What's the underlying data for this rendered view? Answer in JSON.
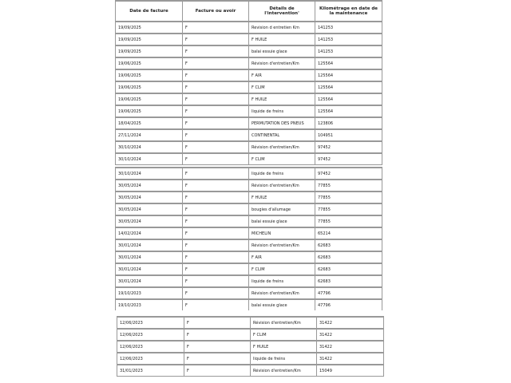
{
  "header": [
    "Date de facture",
    "Facture ou avoir",
    "Détails de l'intervention'",
    "Kilométrage en date de la maintenance"
  ],
  "segments": [
    [
      [
        "19/09/2025",
        "F",
        "Revision d entretien Km",
        "141253"
      ],
      [
        "19/09/2025",
        "F",
        "F HUILE",
        "141253"
      ],
      [
        "19/09/2025",
        "F",
        "balai essuie glace",
        "141253"
      ],
      [
        "19/06/2025",
        "F",
        "Révision d'entretien/Km",
        "125564"
      ],
      [
        "19/06/2025",
        "F",
        "F AIR",
        "125564"
      ],
      [
        "19/06/2025",
        "F",
        "F CLIM",
        "125564"
      ],
      [
        "19/06/2025",
        "F",
        "F HUILE",
        "125564"
      ],
      [
        "19/06/2025",
        "F",
        "liquide de freins",
        "125564"
      ],
      [
        "18/04/2025",
        "F",
        "PERMUTATION DES PNEUS",
        "123806"
      ],
      [
        "27/11/2024",
        "F",
        "CONTINENTAL",
        "104951"
      ],
      [
        "30/10/2024",
        "F",
        "Révision d'entretien/Km",
        "97452"
      ],
      [
        "30/10/2024",
        "F",
        "F CLIM",
        "97452"
      ]
    ],
    [
      [
        "30/10/2024",
        "F",
        "liquide de freins",
        "97452"
      ],
      [
        "30/05/2024",
        "F",
        "Révision d'entretien/Km",
        "77855"
      ],
      [
        "30/05/2024",
        "F",
        "F HUILE",
        "77855"
      ],
      [
        "30/05/2024",
        "F",
        "bougies d'allumage",
        "77855"
      ],
      [
        "30/05/2024",
        "F",
        "balai essuie glace",
        "77855"
      ],
      [
        "14/02/2024",
        "F",
        "MICHELIN",
        "65214"
      ],
      [
        "30/01/2024",
        "F",
        "Révision d'entretien/Km",
        "62683"
      ],
      [
        "30/01/2024",
        "F",
        "F AIR",
        "62683"
      ],
      [
        "30/01/2024",
        "F",
        "F CLIM",
        "62683"
      ],
      [
        "30/01/2024",
        "F",
        "liquide de freins",
        "62683"
      ],
      [
        "19/10/2023",
        "F",
        "Révision d'entretien/Km",
        "47796"
      ],
      [
        "19/10/2023",
        "F",
        "balai essuie glace",
        "47796"
      ]
    ],
    [
      [
        "12/06/2023",
        "F",
        "Révision d'entretien/Km",
        "31422"
      ],
      [
        "12/06/2023",
        "F",
        "F CLIM",
        "31422"
      ],
      [
        "12/06/2023",
        "F",
        "F HUILE",
        "31422"
      ],
      [
        "12/06/2023",
        "F",
        "liquide de freins",
        "31422"
      ],
      [
        "31/01/2023",
        "F",
        "Révision d'entretien/Km",
        "15049"
      ]
    ]
  ]
}
